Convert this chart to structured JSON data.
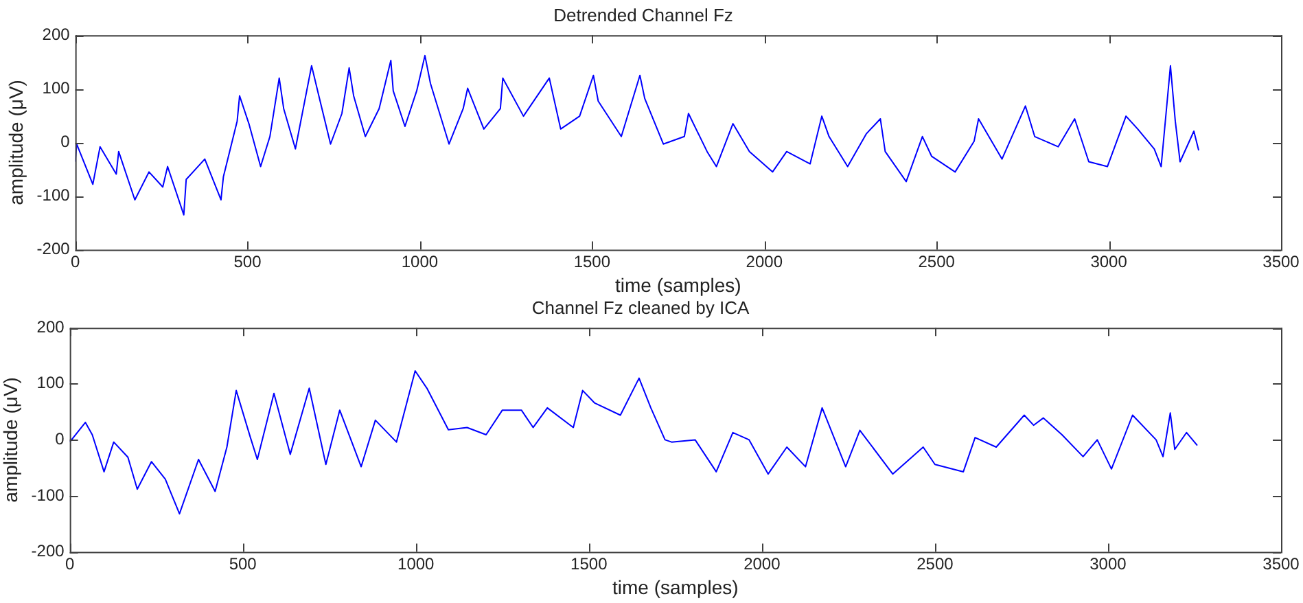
{
  "chart_data": [
    {
      "type": "line",
      "title": "Detrended Channel Fz",
      "xlabel": "time (samples)",
      "ylabel": "amplitude (μV)",
      "xlim": [
        0,
        3500
      ],
      "xticks": [
        0,
        500,
        1000,
        1500,
        2000,
        2500,
        3000,
        3500
      ],
      "ylim": [
        -200,
        200
      ],
      "yticks": [
        -200,
        -100,
        0,
        100,
        200
      ],
      "grid": false,
      "legend": false,
      "marker": "none",
      "line_style": "solid",
      "color": "#0000ff",
      "x": [
        0,
        4,
        51,
        72,
        119,
        126,
        173,
        214,
        254,
        268,
        315,
        322,
        376,
        423,
        430,
        470,
        477,
        504,
        538,
        565,
        592,
        605,
        639,
        659,
        686,
        707,
        741,
        774,
        795,
        808,
        842,
        882,
        916,
        923,
        957,
        991,
        1015,
        1031,
        1085,
        1126,
        1139,
        1186,
        1234,
        1241,
        1301,
        1376,
        1409,
        1464,
        1504,
        1518,
        1585,
        1639,
        1653,
        1707,
        1768,
        1780,
        1834,
        1861,
        1909,
        1957,
        2024,
        2065,
        2133,
        2167,
        2188,
        2242,
        2296,
        2337,
        2351,
        2412,
        2459,
        2486,
        2554,
        2609,
        2622,
        2690,
        2758,
        2785,
        2853,
        2901,
        2942,
        2996,
        3050,
        3084,
        3132,
        3152,
        3179,
        3193,
        3207,
        3247,
        3261
      ],
      "values": [
        -36,
        -3,
        -78,
        -8,
        -59,
        -17,
        -107,
        -55,
        -83,
        -45,
        -135,
        -69,
        -31,
        -107,
        -64,
        40,
        87,
        35,
        -45,
        11,
        120,
        63,
        -12,
        54,
        143,
        87,
        -3,
        54,
        139,
        87,
        11,
        63,
        153,
        96,
        30,
        96,
        162,
        110,
        -3,
        63,
        101,
        25,
        63,
        120,
        49,
        120,
        25,
        49,
        125,
        77,
        11,
        125,
        82,
        -3,
        11,
        54,
        -17,
        -45,
        35,
        -17,
        -55,
        -17,
        -40,
        49,
        11,
        -45,
        16,
        44,
        -17,
        -73,
        11,
        -26,
        -55,
        2,
        44,
        -31,
        68,
        11,
        -8,
        44,
        -36,
        -45,
        49,
        25,
        -12,
        -45,
        143,
        40,
        -36,
        21,
        -15
      ]
    },
    {
      "type": "line",
      "title": "Channel Fz cleaned by ICA",
      "xlabel": "time (samples)",
      "ylabel": "amplitude (μV)",
      "xlim": [
        0,
        3500
      ],
      "xticks": [
        0,
        500,
        1000,
        1500,
        2000,
        2500,
        3000,
        3500
      ],
      "ylim": [
        -200,
        200
      ],
      "yticks": [
        -200,
        -100,
        0,
        100,
        200
      ],
      "grid": false,
      "legend": false,
      "marker": "none",
      "line_style": "solid",
      "color": "#0000ff",
      "x": [
        0,
        45,
        65,
        99,
        127,
        168,
        195,
        236,
        276,
        317,
        372,
        420,
        454,
        481,
        522,
        542,
        590,
        637,
        692,
        740,
        780,
        842,
        883,
        944,
        998,
        1032,
        1094,
        1148,
        1203,
        1250,
        1305,
        1339,
        1380,
        1455,
        1482,
        1516,
        1591,
        1645,
        1679,
        1720,
        1739,
        1807,
        1868,
        1916,
        1963,
        2018,
        2072,
        2126,
        2174,
        2242,
        2283,
        2378,
        2466,
        2500,
        2582,
        2616,
        2677,
        2758,
        2785,
        2813,
        2867,
        2928,
        2969,
        3010,
        3071,
        3139,
        3159,
        3180,
        3193,
        3227,
        3258
      ],
      "values": [
        -4,
        31,
        9,
        -57,
        -4,
        -31,
        -88,
        -39,
        -70,
        -132,
        -35,
        -92,
        -13,
        88,
        4,
        -35,
        83,
        -26,
        92,
        -44,
        53,
        -48,
        35,
        -4,
        123,
        92,
        18,
        22,
        9,
        53,
        53,
        22,
        57,
        22,
        88,
        66,
        44,
        110,
        57,
        0,
        -4,
        0,
        -57,
        13,
        0,
        -61,
        -13,
        -48,
        57,
        -48,
        17,
        -61,
        -13,
        -44,
        -57,
        4,
        -13,
        44,
        26,
        39,
        9,
        -30,
        0,
        -52,
        44,
        0,
        -30,
        48,
        -17,
        13,
        -10
      ]
    }
  ]
}
